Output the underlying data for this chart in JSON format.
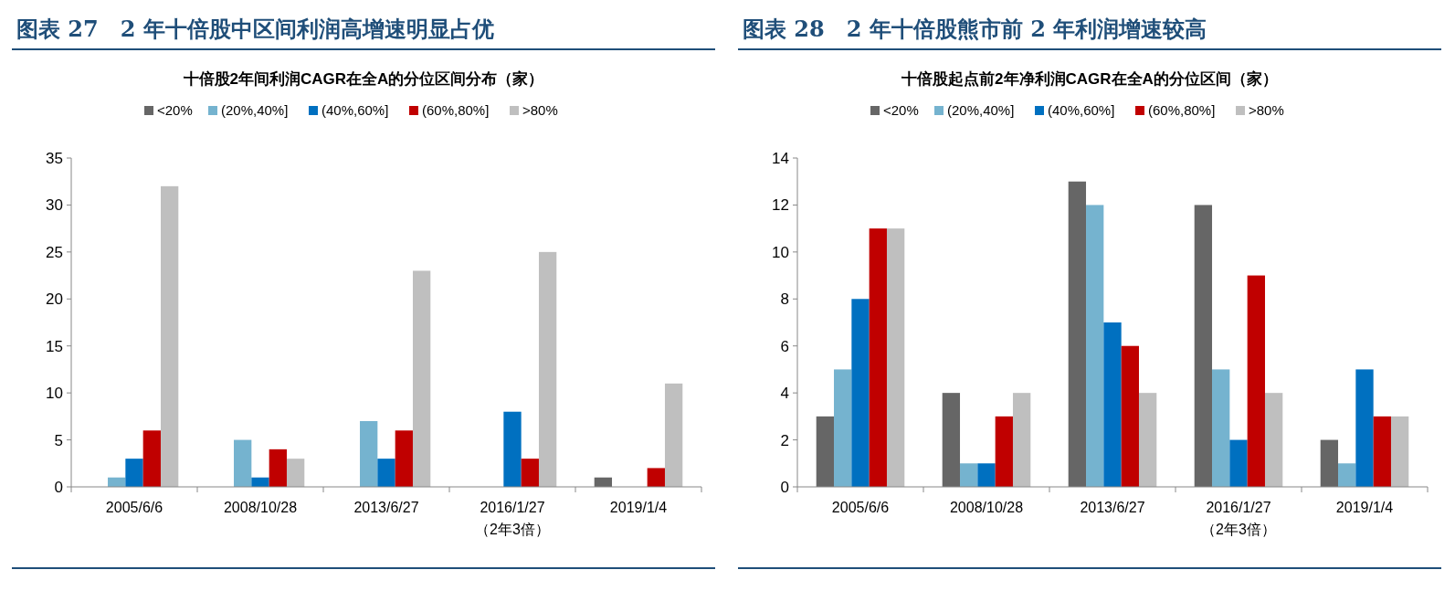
{
  "chart_data": [
    {
      "type": "bar",
      "title": "图表 27　2 年十倍股中区间利润高增速明显占优",
      "subtitle": "十倍股2年间利润CAGR在全A的分位区间分布（家）",
      "categories": [
        "2005/6/6",
        "2008/10/28",
        "2013/6/27",
        "2016/1/27\n（2年3倍）",
        "2019/1/4"
      ],
      "ylim": [
        0,
        35
      ],
      "yticks": [
        0,
        5,
        10,
        15,
        20,
        25,
        30,
        35
      ],
      "legend": "top",
      "grid": false,
      "series": [
        {
          "name": "<20%",
          "color": "#666666",
          "values": [
            0,
            0,
            0,
            0,
            1
          ]
        },
        {
          "name": "(20%,40%]",
          "color": "#75b3cf",
          "values": [
            1,
            5,
            7,
            0,
            0
          ]
        },
        {
          "name": "(40%,60%]",
          "color": "#0070c0",
          "values": [
            3,
            1,
            3,
            8,
            0
          ]
        },
        {
          "name": "(60%,80%]",
          "color": "#c00000",
          "values": [
            6,
            4,
            6,
            3,
            2
          ]
        },
        {
          "name": ">80%",
          "color": "#bfbfbf",
          "values": [
            32,
            3,
            23,
            25,
            11
          ]
        }
      ]
    },
    {
      "type": "bar",
      "title": "图表 28　2 年十倍股熊市前 2 年利润增速较高",
      "subtitle": "十倍股起点前2年净利润CAGR在全A的分位区间（家）",
      "categories": [
        "2005/6/6",
        "2008/10/28",
        "2013/6/27",
        "2016/1/27\n（2年3倍）",
        "2019/1/4"
      ],
      "ylim": [
        0,
        14
      ],
      "yticks": [
        0,
        2,
        4,
        6,
        8,
        10,
        12,
        14
      ],
      "legend": "top",
      "grid": false,
      "series": [
        {
          "name": "<20%",
          "color": "#666666",
          "values": [
            3,
            4,
            13,
            12,
            2
          ]
        },
        {
          "name": "(20%,40%]",
          "color": "#75b3cf",
          "values": [
            5,
            1,
            12,
            5,
            1
          ]
        },
        {
          "name": "(40%,60%]",
          "color": "#0070c0",
          "values": [
            8,
            1,
            7,
            2,
            5
          ]
        },
        {
          "name": "(60%,80%]",
          "color": "#c00000",
          "values": [
            11,
            3,
            6,
            9,
            3
          ]
        },
        {
          "name": ">80%",
          "color": "#bfbfbf",
          "values": [
            11,
            4,
            4,
            4,
            3
          ]
        }
      ]
    }
  ]
}
